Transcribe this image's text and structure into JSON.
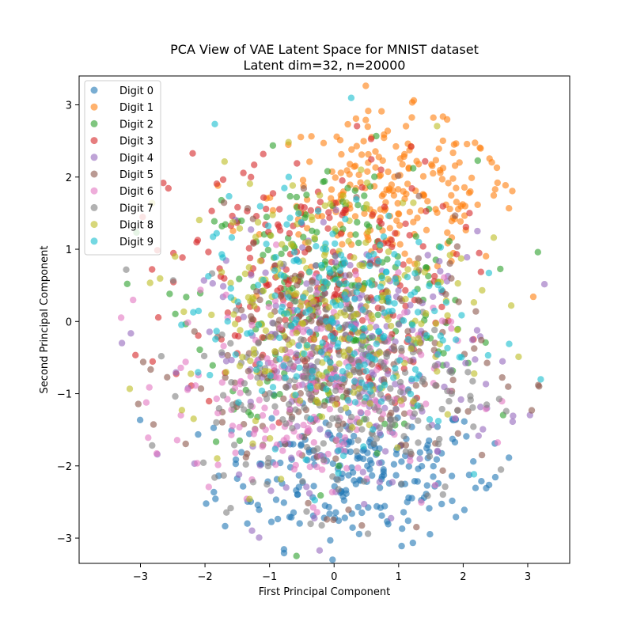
{
  "chart_data": {
    "type": "scatter",
    "title": "PCA View of VAE Latent Space for MNIST dataset",
    "subtitle": "Latent dim=32, n=20000",
    "xlabel": "First Principal Component",
    "ylabel": "Second Principal Component",
    "xlim": [
      -3.95,
      3.65
    ],
    "ylim": [
      -3.35,
      3.4
    ],
    "xticks": [
      -3,
      -2,
      -1,
      0,
      1,
      2,
      3
    ],
    "yticks": [
      -3,
      -2,
      -1,
      0,
      1,
      2,
      3
    ],
    "grid": false,
    "legend_position": "top-left",
    "series": [
      {
        "name": "Digit 0",
        "color": "#1f77b4",
        "center": [
          0.3,
          -2.1
        ],
        "spread": [
          1.05,
          0.5
        ]
      },
      {
        "name": "Digit 1",
        "color": "#ff7f0e",
        "center": [
          0.95,
          1.75
        ],
        "spread": [
          0.95,
          0.55
        ]
      },
      {
        "name": "Digit 2",
        "color": "#2ca02c",
        "center": [
          0.0,
          0.3
        ],
        "spread": [
          1.1,
          0.95
        ]
      },
      {
        "name": "Digit 3",
        "color": "#d62728",
        "center": [
          -0.35,
          0.6
        ],
        "spread": [
          1.1,
          0.9
        ]
      },
      {
        "name": "Digit 4",
        "color": "#9467bd",
        "center": [
          0.3,
          -0.5
        ],
        "spread": [
          1.15,
          0.85
        ]
      },
      {
        "name": "Digit 5",
        "color": "#8c564b",
        "center": [
          0.0,
          -0.6
        ],
        "spread": [
          1.15,
          0.9
        ]
      },
      {
        "name": "Digit 6",
        "color": "#e377c2",
        "center": [
          -0.4,
          -0.9
        ],
        "spread": [
          1.05,
          0.75
        ]
      },
      {
        "name": "Digit 7",
        "color": "#7f7f7f",
        "center": [
          0.2,
          -0.9
        ],
        "spread": [
          1.1,
          0.8
        ]
      },
      {
        "name": "Digit 8",
        "color": "#bcbd22",
        "center": [
          -0.15,
          0.25
        ],
        "spread": [
          1.1,
          0.9
        ]
      },
      {
        "name": "Digit 9",
        "color": "#17becf",
        "center": [
          -0.1,
          0.05
        ],
        "spread": [
          1.0,
          0.85
        ]
      }
    ]
  }
}
